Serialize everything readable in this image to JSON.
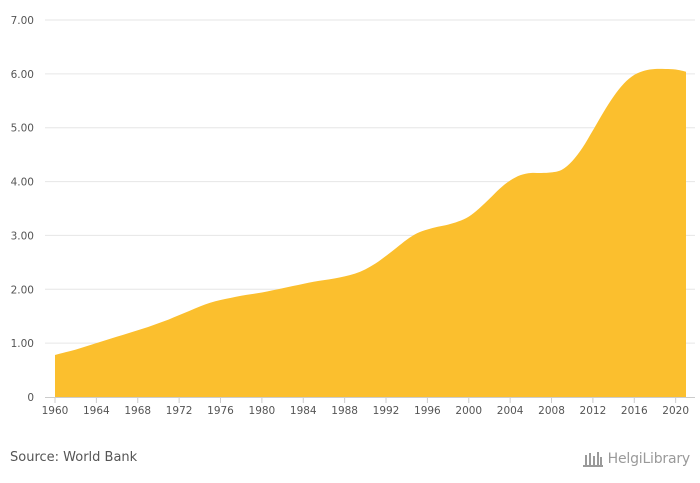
{
  "chart_data": {
    "type": "area",
    "title": "",
    "xlabel": "",
    "ylabel": "",
    "color": "#FBBF2E",
    "grid": true,
    "ylim": [
      0,
      7
    ],
    "xlim": [
      1960,
      2021
    ],
    "y_ticks": [
      "0",
      "1.00",
      "2.00",
      "3.00",
      "4.00",
      "5.00",
      "6.00",
      "7.00"
    ],
    "x_ticks": [
      "1960",
      "1964",
      "1968",
      "1972",
      "1976",
      "1980",
      "1984",
      "1988",
      "1992",
      "1996",
      "2000",
      "2004",
      "2008",
      "2012",
      "2016",
      "2020"
    ],
    "x": [
      1960,
      1961,
      1962,
      1963,
      1964,
      1965,
      1966,
      1967,
      1968,
      1969,
      1970,
      1971,
      1972,
      1973,
      1974,
      1975,
      1976,
      1977,
      1978,
      1979,
      1980,
      1981,
      1982,
      1983,
      1984,
      1985,
      1986,
      1987,
      1988,
      1989,
      1990,
      1991,
      1992,
      1993,
      1994,
      1995,
      1996,
      1997,
      1998,
      1999,
      2000,
      2001,
      2002,
      2003,
      2004,
      2005,
      2006,
      2007,
      2008,
      2009,
      2010,
      2011,
      2012,
      2013,
      2014,
      2015,
      2016,
      2017,
      2018,
      2019,
      2020,
      2021
    ],
    "values": [
      0.78,
      0.83,
      0.88,
      0.94,
      1.0,
      1.06,
      1.12,
      1.18,
      1.24,
      1.3,
      1.37,
      1.44,
      1.52,
      1.6,
      1.68,
      1.75,
      1.8,
      1.84,
      1.88,
      1.91,
      1.94,
      1.98,
      2.02,
      2.06,
      2.1,
      2.14,
      2.17,
      2.2,
      2.24,
      2.29,
      2.37,
      2.48,
      2.62,
      2.77,
      2.92,
      3.04,
      3.11,
      3.16,
      3.2,
      3.26,
      3.35,
      3.5,
      3.68,
      3.87,
      4.02,
      4.12,
      4.16,
      4.16,
      4.17,
      4.22,
      4.38,
      4.63,
      4.95,
      5.28,
      5.58,
      5.82,
      5.98,
      6.06,
      6.09,
      6.09,
      6.08,
      6.04
    ]
  },
  "footer": {
    "source": "Source: World Bank",
    "brand_name": "HelgiLibrary"
  },
  "colors": {
    "area": "#FBBF2E",
    "grid": "#e6e6e6",
    "axis": "#cccccc",
    "text": "#555555",
    "brand": "#9a9a9a"
  }
}
